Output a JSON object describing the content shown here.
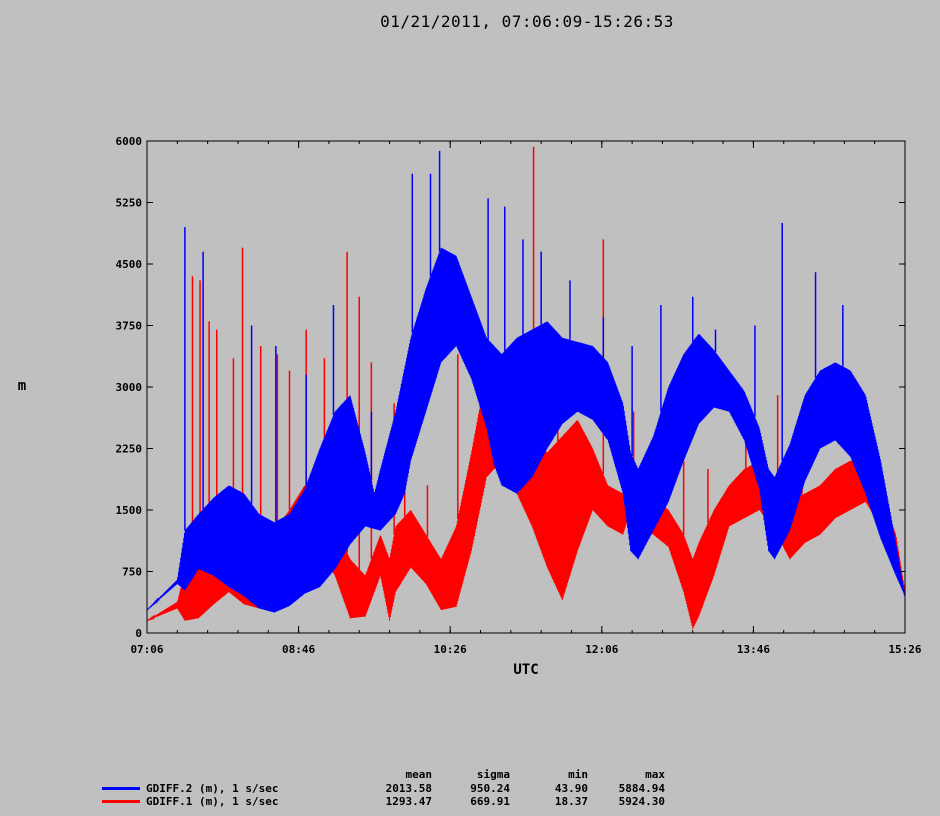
{
  "title": "01/21/2011, 07:06:09-15:26:53",
  "chart_data": {
    "type": "line",
    "xlabel": "UTC",
    "ylabel": "m",
    "x_tick_labels": [
      "07:06",
      "08:46",
      "10:26",
      "12:06",
      "13:46",
      "15:26"
    ],
    "x_range_minutes": [
      426,
      926
    ],
    "ylim": [
      0,
      6000
    ],
    "y_ticks": [
      0,
      750,
      1500,
      2250,
      3000,
      3750,
      4500,
      5250,
      6000
    ],
    "grid": false,
    "series": [
      {
        "name": "GDIFF.2 (m), 1 s/sec",
        "color": "#0000ff",
        "lower": [
          [
            426,
            280
          ],
          [
            446,
            600
          ],
          [
            451,
            520
          ],
          [
            460,
            780
          ],
          [
            470,
            700
          ],
          [
            480,
            560
          ],
          [
            490,
            450
          ],
          [
            500,
            300
          ],
          [
            510,
            250
          ],
          [
            520,
            330
          ],
          [
            530,
            480
          ],
          [
            540,
            560
          ],
          [
            550,
            780
          ],
          [
            560,
            1080
          ],
          [
            570,
            1300
          ],
          [
            580,
            1250
          ],
          [
            590,
            1450
          ],
          [
            596,
            1700
          ],
          [
            600,
            2100
          ],
          [
            610,
            2700
          ],
          [
            620,
            3300
          ],
          [
            630,
            3500
          ],
          [
            640,
            3100
          ],
          [
            650,
            2500
          ],
          [
            655,
            2050
          ],
          [
            660,
            1800
          ],
          [
            670,
            1700
          ],
          [
            680,
            1900
          ],
          [
            690,
            2250
          ],
          [
            700,
            2550
          ],
          [
            710,
            2700
          ],
          [
            720,
            2600
          ],
          [
            730,
            2350
          ],
          [
            740,
            1700
          ],
          [
            745,
            1000
          ],
          [
            750,
            900
          ],
          [
            760,
            1250
          ],
          [
            770,
            1600
          ],
          [
            780,
            2100
          ],
          [
            790,
            2550
          ],
          [
            800,
            2750
          ],
          [
            810,
            2700
          ],
          [
            820,
            2350
          ],
          [
            830,
            1750
          ],
          [
            836,
            1000
          ],
          [
            840,
            900
          ],
          [
            850,
            1250
          ],
          [
            860,
            1850
          ],
          [
            870,
            2250
          ],
          [
            880,
            2350
          ],
          [
            890,
            2150
          ],
          [
            900,
            1700
          ],
          [
            910,
            1150
          ],
          [
            920,
            700
          ],
          [
            926,
            450
          ]
        ],
        "upper": [
          [
            426,
            280
          ],
          [
            446,
            650
          ],
          [
            451,
            1250
          ],
          [
            460,
            1450
          ],
          [
            470,
            1650
          ],
          [
            480,
            1800
          ],
          [
            490,
            1700
          ],
          [
            500,
            1450
          ],
          [
            510,
            1350
          ],
          [
            520,
            1450
          ],
          [
            530,
            1750
          ],
          [
            540,
            2250
          ],
          [
            550,
            2700
          ],
          [
            560,
            2900
          ],
          [
            570,
            2200
          ],
          [
            576,
            1700
          ],
          [
            580,
            2000
          ],
          [
            590,
            2700
          ],
          [
            600,
            3600
          ],
          [
            610,
            4200
          ],
          [
            620,
            4700
          ],
          [
            630,
            4600
          ],
          [
            640,
            4100
          ],
          [
            650,
            3600
          ],
          [
            660,
            3400
          ],
          [
            670,
            3600
          ],
          [
            680,
            3700
          ],
          [
            690,
            3800
          ],
          [
            700,
            3600
          ],
          [
            710,
            3550
          ],
          [
            720,
            3500
          ],
          [
            730,
            3300
          ],
          [
            740,
            2800
          ],
          [
            745,
            2200
          ],
          [
            750,
            2000
          ],
          [
            760,
            2400
          ],
          [
            770,
            3000
          ],
          [
            780,
            3400
          ],
          [
            790,
            3650
          ],
          [
            800,
            3450
          ],
          [
            810,
            3200
          ],
          [
            820,
            2950
          ],
          [
            830,
            2500
          ],
          [
            836,
            2000
          ],
          [
            840,
            1900
          ],
          [
            850,
            2300
          ],
          [
            860,
            2900
          ],
          [
            870,
            3200
          ],
          [
            880,
            3300
          ],
          [
            890,
            3200
          ],
          [
            900,
            2900
          ],
          [
            910,
            2100
          ],
          [
            920,
            1100
          ],
          [
            926,
            450
          ]
        ],
        "spikes": [
          [
            451,
            4950
          ],
          [
            463,
            4650
          ],
          [
            495,
            3750
          ],
          [
            511,
            3500
          ],
          [
            531,
            3150
          ],
          [
            549,
            4000
          ],
          [
            574,
            2700
          ],
          [
            601,
            5600
          ],
          [
            613,
            5600
          ],
          [
            619,
            5880
          ],
          [
            651,
            5300
          ],
          [
            662,
            5200
          ],
          [
            674,
            4800
          ],
          [
            686,
            4650
          ],
          [
            705,
            4300
          ],
          [
            727,
            3850
          ],
          [
            746,
            3500
          ],
          [
            765,
            4000
          ],
          [
            786,
            4100
          ],
          [
            801,
            3700
          ],
          [
            827,
            3750
          ],
          [
            845,
            5000
          ],
          [
            867,
            4400
          ],
          [
            885,
            4000
          ]
        ]
      },
      {
        "name": "GDIFF.1 (m), 1 s/sec",
        "color": "#ff0000",
        "lower": [
          [
            426,
            150
          ],
          [
            446,
            300
          ],
          [
            451,
            150
          ],
          [
            460,
            180
          ],
          [
            470,
            350
          ],
          [
            480,
            500
          ],
          [
            490,
            350
          ],
          [
            500,
            300
          ],
          [
            510,
            500
          ],
          [
            520,
            900
          ],
          [
            530,
            1200
          ],
          [
            540,
            1000
          ],
          [
            550,
            700
          ],
          [
            560,
            180
          ],
          [
            570,
            200
          ],
          [
            580,
            700
          ],
          [
            586,
            150
          ],
          [
            590,
            500
          ],
          [
            600,
            800
          ],
          [
            610,
            600
          ],
          [
            620,
            280
          ],
          [
            630,
            320
          ],
          [
            640,
            1000
          ],
          [
            650,
            1900
          ],
          [
            660,
            2100
          ],
          [
            670,
            1700
          ],
          [
            680,
            1300
          ],
          [
            690,
            800
          ],
          [
            700,
            400
          ],
          [
            710,
            1000
          ],
          [
            720,
            1500
          ],
          [
            730,
            1300
          ],
          [
            740,
            1200
          ],
          [
            745,
            1500
          ],
          [
            750,
            1300
          ],
          [
            760,
            1200
          ],
          [
            770,
            1050
          ],
          [
            780,
            500
          ],
          [
            786,
            50
          ],
          [
            790,
            200
          ],
          [
            800,
            700
          ],
          [
            810,
            1300
          ],
          [
            820,
            1400
          ],
          [
            830,
            1500
          ],
          [
            840,
            1250
          ],
          [
            850,
            900
          ],
          [
            860,
            1100
          ],
          [
            870,
            1200
          ],
          [
            880,
            1400
          ],
          [
            890,
            1500
          ],
          [
            900,
            1600
          ],
          [
            910,
            1300
          ],
          [
            920,
            900
          ],
          [
            926,
            500
          ]
        ],
        "upper": [
          [
            426,
            150
          ],
          [
            446,
            380
          ],
          [
            451,
            750
          ],
          [
            460,
            850
          ],
          [
            470,
            900
          ],
          [
            480,
            1100
          ],
          [
            490,
            900
          ],
          [
            500,
            1000
          ],
          [
            510,
            1250
          ],
          [
            520,
            1500
          ],
          [
            530,
            1800
          ],
          [
            540,
            1700
          ],
          [
            550,
            1300
          ],
          [
            560,
            900
          ],
          [
            570,
            700
          ],
          [
            580,
            1200
          ],
          [
            586,
            900
          ],
          [
            590,
            1300
          ],
          [
            600,
            1500
          ],
          [
            610,
            1200
          ],
          [
            620,
            900
          ],
          [
            630,
            1300
          ],
          [
            640,
            2200
          ],
          [
            650,
            3200
          ],
          [
            660,
            3100
          ],
          [
            670,
            2700
          ],
          [
            680,
            2400
          ],
          [
            690,
            2200
          ],
          [
            700,
            2400
          ],
          [
            710,
            2600
          ],
          [
            720,
            2250
          ],
          [
            730,
            1800
          ],
          [
            740,
            1700
          ],
          [
            745,
            1800
          ],
          [
            750,
            1800
          ],
          [
            760,
            1650
          ],
          [
            770,
            1500
          ],
          [
            780,
            1200
          ],
          [
            786,
            900
          ],
          [
            790,
            1100
          ],
          [
            800,
            1500
          ],
          [
            810,
            1800
          ],
          [
            820,
            2000
          ],
          [
            830,
            2100
          ],
          [
            840,
            1800
          ],
          [
            850,
            1600
          ],
          [
            860,
            1700
          ],
          [
            870,
            1800
          ],
          [
            880,
            2000
          ],
          [
            890,
            2100
          ],
          [
            900,
            2100
          ],
          [
            910,
            1700
          ],
          [
            920,
            1200
          ],
          [
            926,
            500
          ]
        ],
        "spikes": [
          [
            456,
            4350
          ],
          [
            461,
            4300
          ],
          [
            467,
            3800
          ],
          [
            472,
            3700
          ],
          [
            483,
            3350
          ],
          [
            489,
            4700
          ],
          [
            501,
            3500
          ],
          [
            512,
            3400
          ],
          [
            520,
            3200
          ],
          [
            531,
            3700
          ],
          [
            543,
            3350
          ],
          [
            558,
            4650
          ],
          [
            566,
            4100
          ],
          [
            574,
            3300
          ],
          [
            589,
            2800
          ],
          [
            596,
            2600
          ],
          [
            611,
            1800
          ],
          [
            631,
            3400
          ],
          [
            646,
            3300
          ],
          [
            662,
            3400
          ],
          [
            681,
            5930
          ],
          [
            697,
            2900
          ],
          [
            716,
            2300
          ],
          [
            727,
            4800
          ],
          [
            747,
            2700
          ],
          [
            762,
            2500
          ],
          [
            780,
            2100
          ],
          [
            796,
            2000
          ],
          [
            821,
            2400
          ],
          [
            842,
            2900
          ],
          [
            858,
            2600
          ],
          [
            880,
            1900
          ]
        ]
      }
    ],
    "stats": {
      "headers": [
        "mean",
        "sigma",
        "min",
        "max"
      ],
      "rows": [
        {
          "label": "GDIFF.2 (m), 1 s/sec",
          "color": "#0000ff",
          "mean": "2013.58",
          "sigma": "950.24",
          "min": "43.90",
          "max": "5884.94"
        },
        {
          "label": "GDIFF.1 (m), 1 s/sec",
          "color": "#ff0000",
          "mean": "1293.47",
          "sigma": "669.91",
          "min": "18.37",
          "max": "5924.30"
        }
      ]
    }
  }
}
